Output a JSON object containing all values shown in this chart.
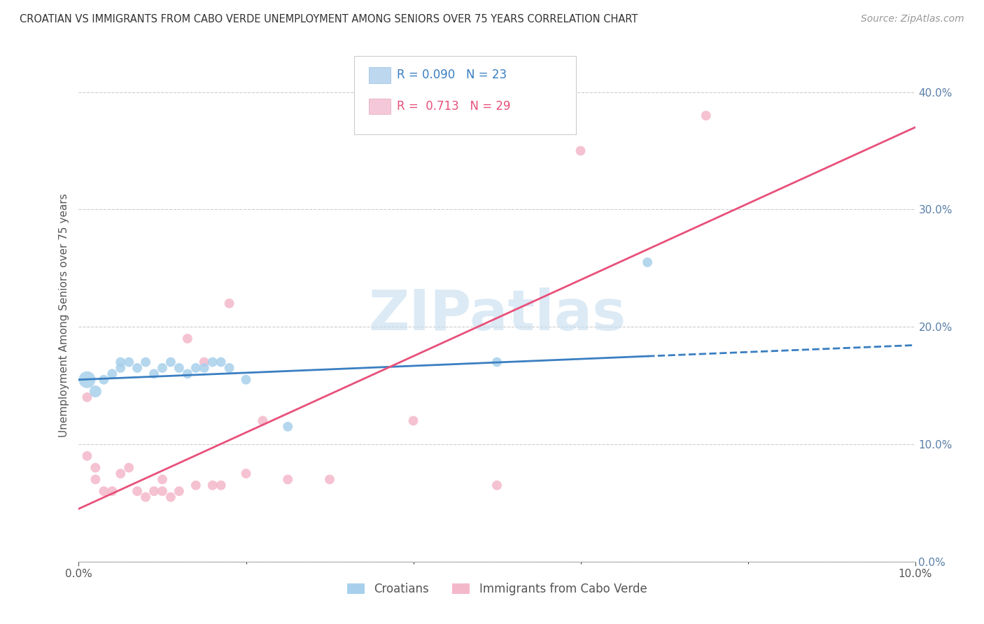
{
  "title": "CROATIAN VS IMMIGRANTS FROM CABO VERDE UNEMPLOYMENT AMONG SENIORS OVER 75 YEARS CORRELATION CHART",
  "source": "Source: ZipAtlas.com",
  "ylabel": "Unemployment Among Seniors over 75 years",
  "legend_label1": "Croatians",
  "legend_label2": "Immigrants from Cabo Verde",
  "R_croatian": "0.090",
  "N_croatian": "23",
  "R_cabo": "0.713",
  "N_cabo": "29",
  "xlim": [
    0.0,
    0.1
  ],
  "ylim": [
    0.0,
    0.42
  ],
  "croatian_color": "#a8d0ec",
  "cabo_color": "#f4b8cb",
  "croatian_line_color": "#3a7fc1",
  "cabo_line_color": "#e8507a",
  "background_color": "#ffffff",
  "croatian_x": [
    0.001,
    0.002,
    0.003,
    0.004,
    0.005,
    0.005,
    0.006,
    0.007,
    0.008,
    0.009,
    0.01,
    0.011,
    0.012,
    0.013,
    0.014,
    0.015,
    0.016,
    0.017,
    0.018,
    0.02,
    0.025,
    0.05,
    0.068
  ],
  "croatian_y": [
    0.155,
    0.145,
    0.155,
    0.16,
    0.165,
    0.17,
    0.17,
    0.165,
    0.17,
    0.16,
    0.165,
    0.17,
    0.165,
    0.16,
    0.165,
    0.165,
    0.17,
    0.17,
    0.165,
    0.155,
    0.115,
    0.17,
    0.255
  ],
  "croatian_size": [
    300,
    150,
    100,
    100,
    100,
    100,
    100,
    100,
    100,
    100,
    100,
    100,
    100,
    100,
    100,
    100,
    100,
    100,
    100,
    100,
    100,
    100,
    100
  ],
  "cabo_x": [
    0.001,
    0.001,
    0.002,
    0.002,
    0.003,
    0.004,
    0.005,
    0.006,
    0.007,
    0.008,
    0.009,
    0.01,
    0.01,
    0.011,
    0.012,
    0.013,
    0.014,
    0.015,
    0.016,
    0.017,
    0.018,
    0.02,
    0.022,
    0.025,
    0.03,
    0.04,
    0.05,
    0.06,
    0.075
  ],
  "cabo_y": [
    0.14,
    0.09,
    0.08,
    0.07,
    0.06,
    0.06,
    0.075,
    0.08,
    0.06,
    0.055,
    0.06,
    0.07,
    0.06,
    0.055,
    0.06,
    0.19,
    0.065,
    0.17,
    0.065,
    0.065,
    0.22,
    0.075,
    0.12,
    0.07,
    0.07,
    0.12,
    0.065,
    0.35,
    0.38
  ],
  "cabo_size": [
    100,
    100,
    100,
    100,
    100,
    100,
    100,
    100,
    100,
    100,
    100,
    100,
    100,
    100,
    100,
    100,
    100,
    100,
    100,
    100,
    100,
    100,
    100,
    100,
    100,
    100,
    100,
    100,
    100
  ],
  "croatian_line_x0": 0.0,
  "croatian_line_y0": 0.155,
  "croatian_line_x1": 0.068,
  "croatian_line_y1": 0.175,
  "cabo_line_x0": 0.0,
  "cabo_line_y0": 0.045,
  "cabo_line_x1": 0.1,
  "cabo_line_y1": 0.37
}
